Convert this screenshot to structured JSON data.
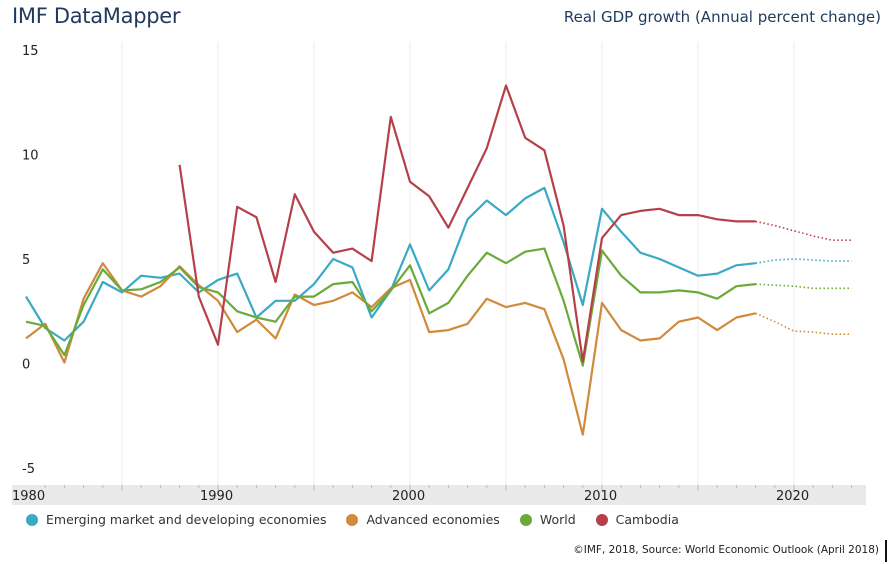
{
  "header": {
    "app_title": "IMF DataMapper",
    "chart_title": "Real GDP growth (Annual percent change)"
  },
  "footer": {
    "source": "©IMF, 2018, Source: World Economic Outlook (April 2018)"
  },
  "chart_data": {
    "type": "line",
    "title": "Real GDP growth (Annual percent change)",
    "xlabel": "",
    "ylabel": "",
    "xlim": [
      1980,
      2023
    ],
    "ylim": [
      -5,
      15
    ],
    "yticks": [
      15,
      10,
      5,
      0,
      -5
    ],
    "xticks": [
      1980,
      1990,
      2000,
      2010,
      2020
    ],
    "grid": "vertical every 5 years",
    "legend_position": "bottom",
    "projection_start": 2018,
    "series": [
      {
        "name": "Emerging market and developing economies",
        "color": "#3aa9c4",
        "start_year": 1980,
        "values": [
          3.2,
          1.7,
          1.1,
          2.0,
          3.9,
          3.4,
          4.2,
          4.1,
          4.3,
          3.4,
          4.0,
          4.3,
          2.2,
          3.0,
          3.0,
          3.8,
          5.0,
          4.6,
          2.2,
          3.5,
          5.7,
          3.5,
          4.5,
          6.9,
          7.8,
          7.1,
          7.9,
          8.4,
          5.8,
          2.8,
          7.4,
          6.3,
          5.3,
          5.0,
          4.6,
          4.2,
          4.3,
          4.7,
          4.8,
          4.95,
          5.0,
          4.95,
          4.9,
          4.9
        ]
      },
      {
        "name": "Advanced economies",
        "color": "#d08a3c",
        "start_year": 1980,
        "values": [
          1.2,
          1.9,
          0.05,
          3.1,
          4.8,
          3.5,
          3.2,
          3.7,
          4.65,
          3.75,
          3.0,
          1.5,
          2.1,
          1.2,
          3.3,
          2.8,
          3.0,
          3.4,
          2.7,
          3.6,
          4.0,
          1.5,
          1.6,
          1.9,
          3.1,
          2.7,
          2.9,
          2.6,
          0.2,
          -3.4,
          2.9,
          1.6,
          1.1,
          1.2,
          2.0,
          2.2,
          1.6,
          2.2,
          2.4,
          2.0,
          1.55,
          1.5,
          1.4,
          1.4
        ]
      },
      {
        "name": "World",
        "color": "#6aaa3a",
        "start_year": 1980,
        "values": [
          2.0,
          1.8,
          0.4,
          2.8,
          4.5,
          3.5,
          3.55,
          3.9,
          4.6,
          3.65,
          3.4,
          2.5,
          2.2,
          2.0,
          3.2,
          3.2,
          3.8,
          3.9,
          2.5,
          3.5,
          4.7,
          2.4,
          2.9,
          4.2,
          5.3,
          4.8,
          5.35,
          5.5,
          3.0,
          -0.1,
          5.4,
          4.2,
          3.4,
          3.4,
          3.5,
          3.4,
          3.1,
          3.7,
          3.8,
          3.75,
          3.7,
          3.6,
          3.6,
          3.6
        ]
      },
      {
        "name": "Cambodia",
        "color": "#b5404a",
        "start_year": 1988,
        "values": [
          9.5,
          3.2,
          0.9,
          7.5,
          7.0,
          3.9,
          8.1,
          6.3,
          5.3,
          5.5,
          4.9,
          11.8,
          8.7,
          8.0,
          6.5,
          8.4,
          10.3,
          13.3,
          10.8,
          10.2,
          6.6,
          0.1,
          6.0,
          7.1,
          7.3,
          7.4,
          7.1,
          7.1,
          6.9,
          6.8,
          6.8,
          6.6,
          6.35,
          6.1,
          5.9,
          5.9
        ]
      }
    ]
  }
}
